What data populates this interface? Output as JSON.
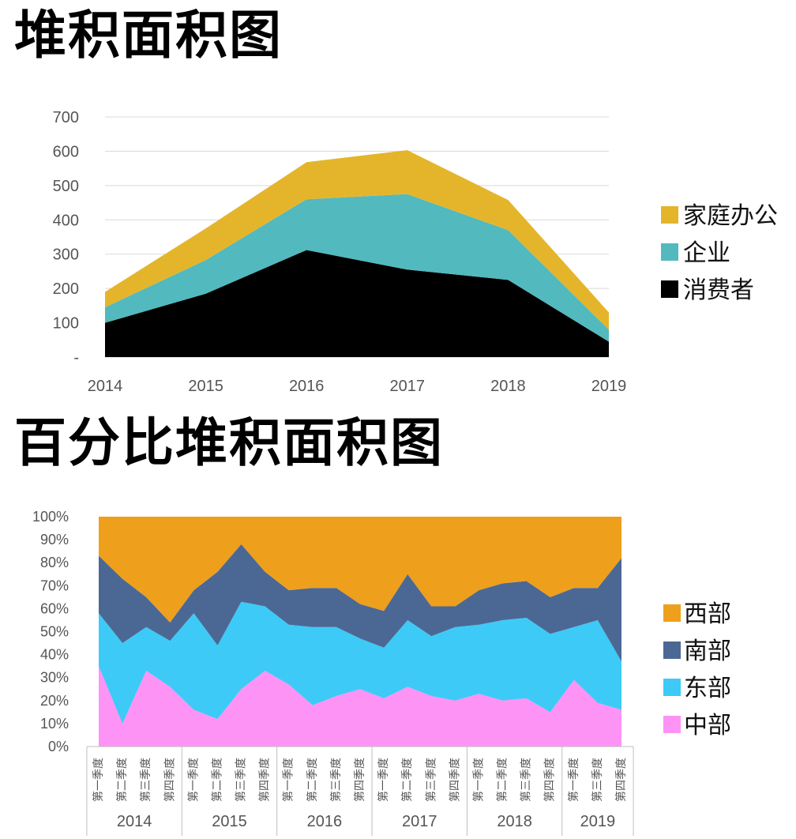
{
  "charts": [
    {
      "title": "堆积面积图",
      "chart_data": {
        "type": "area",
        "stacked": true,
        "x": [
          "2014",
          "2015",
          "2016",
          "2017",
          "2018",
          "2019"
        ],
        "ytick_labels": [
          "-",
          "100",
          "200",
          "300",
          "400",
          "500",
          "600",
          "700"
        ],
        "ylim": [
          0,
          700
        ],
        "grid": true,
        "legend_position": "right",
        "series": [
          {
            "name": "消费者",
            "color": "#000000",
            "values": [
              100,
              185,
              312,
              255,
              225,
              45
            ]
          },
          {
            "name": "企业",
            "color": "#52b9be",
            "values": [
              45,
              98,
              148,
              220,
              145,
              35
            ]
          },
          {
            "name": "家庭办公",
            "color": "#e4b52b",
            "values": [
              45,
              92,
              108,
              128,
              88,
              50
            ]
          }
        ]
      }
    },
    {
      "title": "百分比堆积面积图",
      "chart_data": {
        "type": "area",
        "stacked": "percent",
        "years": [
          "2014",
          "2015",
          "2016",
          "2017",
          "2018",
          "2019"
        ],
        "quarters": [
          "第一季度",
          "第二季度",
          "第三季度",
          "第四季度",
          "第一季度",
          "第二季度",
          "第三季度",
          "第四季度",
          "第一季度",
          "第二季度",
          "第三季度",
          "第四季度",
          "第一季度",
          "第二季度",
          "第三季度",
          "第四季度",
          "第一季度",
          "第二季度",
          "第三季度",
          "第四季度",
          "第一季度",
          "第三季度",
          "第四季度"
        ],
        "quarters_per_year": [
          4,
          4,
          4,
          4,
          4,
          3
        ],
        "ytick_labels": [
          "0%",
          "10%",
          "20%",
          "30%",
          "40%",
          "50%",
          "60%",
          "70%",
          "80%",
          "90%",
          "100%"
        ],
        "ylim": [
          0,
          100
        ],
        "legend_position": "right",
        "series": [
          {
            "name": "中部",
            "color": "#fd93f5",
            "values": [
              35,
              10,
              33,
              26,
              16,
              12,
              25,
              33,
              27,
              18,
              22,
              25,
              21,
              26,
              22,
              20,
              23,
              20,
              21,
              15,
              29,
              19,
              16
            ]
          },
          {
            "name": "东部",
            "color": "#3dcaf6",
            "values": [
              23,
              35,
              19,
              20,
              42,
              32,
              38,
              28,
              26,
              34,
              30,
              22,
              22,
              29,
              26,
              32,
              30,
              35,
              35,
              34,
              23,
              36,
              21
            ]
          },
          {
            "name": "南部",
            "color": "#4b6894",
            "values": [
              25,
              28,
              13,
              8,
              10,
              32,
              25,
              15,
              15,
              17,
              17,
              15,
              16,
              20,
              13,
              9,
              15,
              16,
              16,
              16,
              17,
              14,
              45
            ]
          },
          {
            "name": "西部",
            "color": "#ee9f1c",
            "values": [
              17,
              27,
              35,
              46,
              32,
              24,
              12,
              24,
              32,
              31,
              31,
              38,
              41,
              25,
              39,
              39,
              32,
              29,
              28,
              35,
              31,
              31,
              18
            ]
          }
        ]
      }
    }
  ]
}
